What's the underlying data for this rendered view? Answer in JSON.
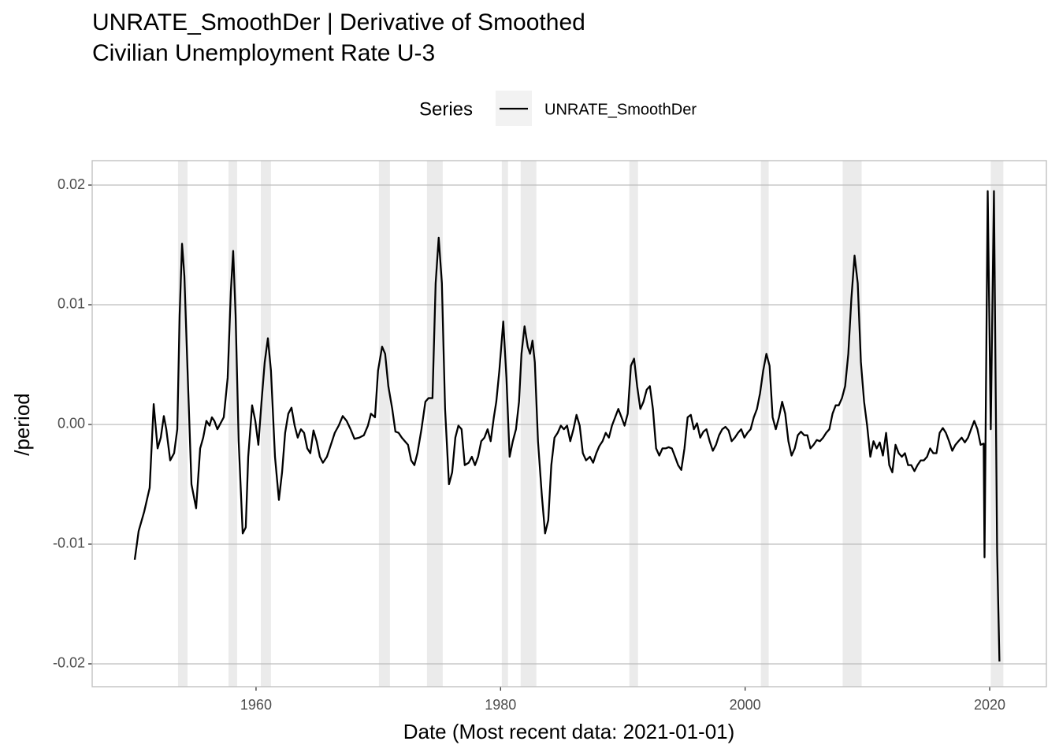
{
  "chart_data": {
    "type": "line",
    "title": [
      "UNRATE_SmoothDer | Derivative of Smoothed",
      "Civilian Unemployment Rate U-3"
    ],
    "legend_title": "Series",
    "x_label": "Date (Most recent data: 2021-01-01)",
    "y_label": "/period",
    "grid": true,
    "legend_position": "top",
    "shade_color": "#ebebeb",
    "shaded_regions": [
      [
        1953.62,
        1954.4
      ],
      [
        1957.75,
        1958.45
      ],
      [
        1960.39,
        1961.22
      ],
      [
        1970.05,
        1970.95
      ],
      [
        1973.98,
        1975.27
      ],
      [
        1980.1,
        1980.61
      ],
      [
        1981.64,
        1982.93
      ],
      [
        1990.53,
        1991.24
      ],
      [
        2001.29,
        2001.93
      ],
      [
        2007.98,
        2009.53
      ],
      [
        2020.09,
        2021.12
      ]
    ],
    "xlim": [
      1946.6,
      2024.64
    ],
    "xticks": [
      1960,
      1980,
      2000,
      2020
    ],
    "ylim": [
      -0.02191,
      0.02204
    ],
    "yticks": [
      -0.02,
      -0.01,
      {
        "value": 0,
        "label": "0.00"
      },
      0.01,
      0.02
    ],
    "x": [
      1950.08,
      1950.4,
      1950.85,
      1951.3,
      1951.63,
      1951.95,
      1952.21,
      1952.46,
      1952.66,
      1952.98,
      1953.3,
      1953.56,
      1953.75,
      1953.95,
      1954.14,
      1954.4,
      1954.72,
      1955.1,
      1955.43,
      1955.68,
      1955.94,
      1956.2,
      1956.39,
      1956.59,
      1956.84,
      1957.1,
      1957.36,
      1957.68,
      1957.94,
      1958.13,
      1958.33,
      1958.58,
      1958.91,
      1959.16,
      1959.36,
      1959.68,
      1959.94,
      1960.19,
      1960.45,
      1960.71,
      1960.97,
      1961.22,
      1961.55,
      1961.87,
      1962.13,
      1962.38,
      1962.64,
      1962.9,
      1963.16,
      1963.41,
      1963.67,
      1963.93,
      1964.19,
      1964.44,
      1964.7,
      1964.96,
      1965.22,
      1965.47,
      1965.8,
      1966.12,
      1966.44,
      1966.76,
      1967.09,
      1967.41,
      1967.73,
      1968.05,
      1968.44,
      1968.82,
      1969.15,
      1969.4,
      1969.73,
      1969.98,
      1970.31,
      1970.56,
      1970.82,
      1971.14,
      1971.4,
      1971.66,
      1971.92,
      1972.17,
      1972.43,
      1972.69,
      1972.95,
      1973.2,
      1973.53,
      1973.85,
      1974.11,
      1974.43,
      1974.69,
      1974.94,
      1975.2,
      1975.46,
      1975.78,
      1976.04,
      1976.3,
      1976.55,
      1976.81,
      1977.07,
      1977.39,
      1977.65,
      1977.91,
      1978.16,
      1978.42,
      1978.68,
      1978.94,
      1979.19,
      1979.45,
      1979.65,
      1979.9,
      1980.22,
      1980.48,
      1980.74,
      1981.0,
      1981.26,
      1981.51,
      1981.71,
      1981.96,
      1982.22,
      1982.41,
      1982.61,
      1982.8,
      1983.06,
      1983.38,
      1983.64,
      1983.9,
      1984.15,
      1984.41,
      1984.67,
      1984.93,
      1985.18,
      1985.44,
      1985.7,
      1985.96,
      1986.21,
      1986.47,
      1986.73,
      1986.99,
      1987.31,
      1987.57,
      1987.83,
      1988.08,
      1988.34,
      1988.6,
      1988.86,
      1989.11,
      1989.37,
      1989.63,
      1989.89,
      1990.14,
      1990.4,
      1990.66,
      1990.92,
      1991.17,
      1991.43,
      1991.69,
      1991.95,
      1992.21,
      1992.46,
      1992.72,
      1992.98,
      1993.24,
      1993.49,
      1993.75,
      1994.01,
      1994.27,
      1994.52,
      1994.78,
      1995.04,
      1995.3,
      1995.56,
      1995.81,
      1996.07,
      1996.33,
      1996.59,
      1996.84,
      1997.1,
      1997.36,
      1997.62,
      1997.87,
      1998.13,
      1998.39,
      1998.65,
      1998.9,
      1999.16,
      1999.42,
      1999.68,
      1999.94,
      2000.19,
      2000.45,
      2000.71,
      2000.97,
      2001.22,
      2001.48,
      2001.74,
      2002.0,
      2002.25,
      2002.51,
      2002.77,
      2003.03,
      2003.28,
      2003.54,
      2003.8,
      2004.06,
      2004.31,
      2004.57,
      2004.83,
      2005.09,
      2005.34,
      2005.6,
      2005.86,
      2006.12,
      2006.38,
      2006.63,
      2006.89,
      2007.15,
      2007.41,
      2007.66,
      2007.92,
      2008.18,
      2008.44,
      2008.69,
      2008.95,
      2009.21,
      2009.47,
      2009.73,
      2009.98,
      2010.24,
      2010.5,
      2010.76,
      2011.01,
      2011.27,
      2011.53,
      2011.79,
      2012.04,
      2012.3,
      2012.56,
      2012.82,
      2013.07,
      2013.33,
      2013.59,
      2013.85,
      2014.1,
      2014.36,
      2014.62,
      2014.88,
      2015.13,
      2015.39,
      2015.65,
      2015.91,
      2016.17,
      2016.42,
      2016.68,
      2016.94,
      2017.2,
      2017.45,
      2017.71,
      2017.97,
      2018.23,
      2018.48,
      2018.74,
      2019.0,
      2019.26,
      2019.51,
      2019.58,
      2019.84,
      2020.09,
      2020.35,
      2020.61,
      2020.8
    ],
    "series": [
      {
        "name": "UNRATE_SmoothDer",
        "color": "#000000",
        "values": [
          -0.0113,
          -0.0089,
          -0.0073,
          -0.0053,
          0.0017,
          -0.002,
          -0.0011,
          0.0007,
          -0.0004,
          -0.003,
          -0.0024,
          -0.0004,
          0.0091,
          0.0151,
          0.0124,
          0.0045,
          -0.005,
          -0.007,
          -0.002,
          -0.0011,
          0.0003,
          -0.0001,
          0.0006,
          0.0003,
          -0.0004,
          0.0001,
          0.0006,
          0.0039,
          0.0111,
          0.0145,
          0.0091,
          -0.0014,
          -0.0091,
          -0.0086,
          -0.0027,
          0.0016,
          0.0003,
          -0.0017,
          0.0019,
          0.0052,
          0.0072,
          0.0045,
          -0.0027,
          -0.0063,
          -0.004,
          -0.0007,
          0.0009,
          0.0014,
          -0.0001,
          -0.0011,
          -0.0004,
          -0.0007,
          -0.002,
          -0.0024,
          -0.0005,
          -0.0014,
          -0.0027,
          -0.0032,
          -0.0027,
          -0.0017,
          -0.0007,
          -0.0001,
          0.0007,
          0.0003,
          -0.0004,
          -0.0012,
          -0.0011,
          -0.0009,
          -0.0001,
          0.0009,
          0.0006,
          0.0045,
          0.0065,
          0.0059,
          0.0032,
          0.0013,
          -0.0006,
          -0.0007,
          -0.0011,
          -0.0014,
          -0.0017,
          -0.003,
          -0.0034,
          -0.0024,
          -0.0004,
          0.0019,
          0.0022,
          0.0022,
          0.0118,
          0.0156,
          0.0118,
          0.0013,
          -0.005,
          -0.004,
          -0.0011,
          -0.0001,
          -0.0004,
          -0.0034,
          -0.0032,
          -0.0027,
          -0.0034,
          -0.0027,
          -0.0014,
          -0.0011,
          -0.0004,
          -0.0014,
          0.0006,
          0.0019,
          0.0045,
          0.0086,
          0.0039,
          -0.0027,
          -0.0014,
          -0.0004,
          0.0019,
          0.0059,
          0.0082,
          0.0065,
          0.0059,
          0.007,
          0.0052,
          -0.0014,
          -0.006,
          -0.0091,
          -0.008,
          -0.0034,
          -0.0011,
          -0.0007,
          -0.0001,
          -0.0004,
          -0.0001,
          -0.0014,
          -0.0004,
          0.0008,
          -0.0001,
          -0.0024,
          -0.003,
          -0.0027,
          -0.0032,
          -0.0024,
          -0.0018,
          -0.0014,
          -0.0007,
          -0.0011,
          -0.0001,
          0.0006,
          0.0013,
          0.0006,
          -0.0001,
          0.0009,
          0.0049,
          0.0055,
          0.0032,
          0.0013,
          0.0019,
          0.0029,
          0.0032,
          0.0013,
          -0.002,
          -0.0026,
          -0.002,
          -0.002,
          -0.0019,
          -0.002,
          -0.0027,
          -0.0034,
          -0.0038,
          -0.002,
          0.0006,
          0.0008,
          -0.0004,
          0.0001,
          -0.0011,
          -0.0006,
          -0.0004,
          -0.0014,
          -0.0022,
          -0.0017,
          -0.0009,
          -0.0004,
          -0.0002,
          -0.0005,
          -0.0014,
          -0.0011,
          -0.0007,
          -0.0004,
          -0.0011,
          -0.0007,
          -0.0004,
          0.0006,
          0.0013,
          0.0026,
          0.0045,
          0.0059,
          0.0049,
          0.0006,
          -0.0004,
          0.0006,
          0.0019,
          0.0009,
          -0.0014,
          -0.0026,
          -0.002,
          -0.0009,
          -0.0006,
          -0.0009,
          -0.0009,
          -0.002,
          -0.0017,
          -0.0013,
          -0.0014,
          -0.0011,
          -0.0007,
          -0.0004,
          0.0009,
          0.0016,
          0.0016,
          0.0022,
          0.0032,
          0.0059,
          0.0105,
          0.0141,
          0.0118,
          0.0052,
          0.0019,
          -0.0001,
          -0.0027,
          -0.0014,
          -0.002,
          -0.0015,
          -0.0026,
          -0.0007,
          -0.0034,
          -0.004,
          -0.0017,
          -0.0024,
          -0.0027,
          -0.0024,
          -0.0034,
          -0.0034,
          -0.0039,
          -0.0034,
          -0.003,
          -0.003,
          -0.0027,
          -0.002,
          -0.0024,
          -0.0024,
          -0.0007,
          -0.0003,
          -0.0007,
          -0.0014,
          -0.0022,
          -0.0017,
          -0.0014,
          -0.0011,
          -0.0015,
          -0.0011,
          -0.0004,
          0.0003,
          -0.0004,
          -0.0017,
          -0.0016,
          -0.0111,
          0.0195,
          -0.0004,
          0.0195,
          -0.0106,
          -0.0198
        ]
      }
    ]
  }
}
